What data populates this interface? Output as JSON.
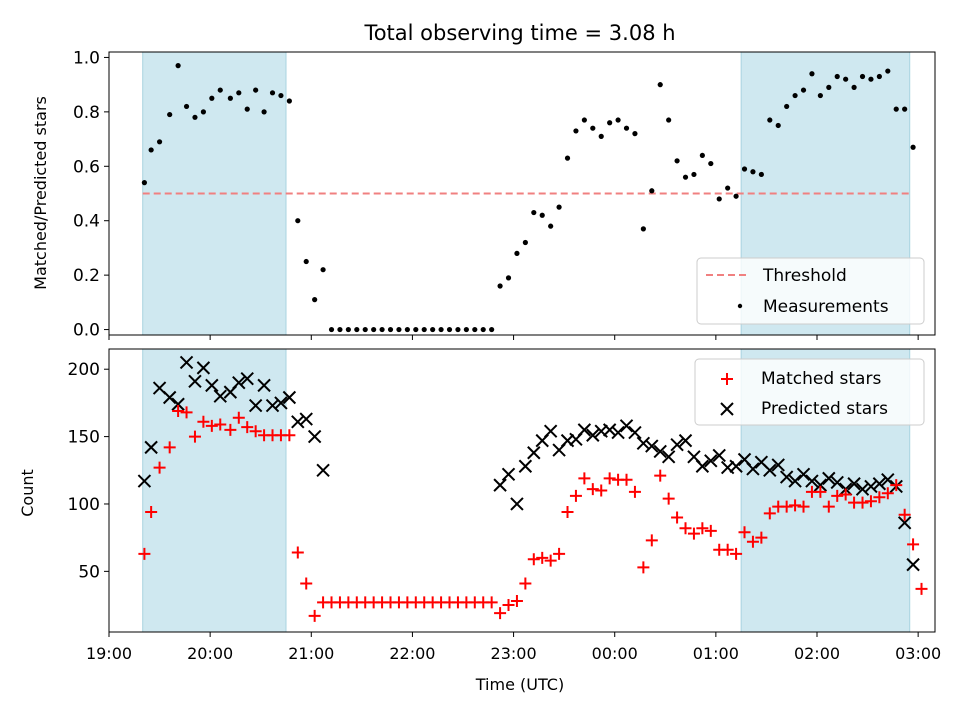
{
  "chart_data": [
    {
      "type": "scatter",
      "title": "Total observing time = 3.08 h",
      "ylabel": "Matched/Predicted stars",
      "xlabel": "",
      "ylim": [
        0,
        1.0
      ],
      "yticks": [
        "0.0",
        "0.2",
        "0.4",
        "0.6",
        "0.8",
        "1.0"
      ],
      "shaded_ranges": [
        [
          "19:20",
          "20:45"
        ],
        [
          "01:15",
          "02:55"
        ]
      ],
      "shade_color": "#cfe8f0",
      "threshold": {
        "name": "Threshold",
        "value": 0.5,
        "color": "#f08080"
      },
      "legend": [
        "Threshold",
        "Measurements"
      ],
      "legend_position": "lower right",
      "series": [
        {
          "name": "Measurements",
          "color": "#000000",
          "marker": "dot",
          "points": [
            [
              "19:21",
              0.54
            ],
            [
              "19:25",
              0.66
            ],
            [
              "19:30",
              0.69
            ],
            [
              "19:36",
              0.79
            ],
            [
              "19:41",
              0.97
            ],
            [
              "19:46",
              0.82
            ],
            [
              "19:51",
              0.78
            ],
            [
              "19:56",
              0.8
            ],
            [
              "20:01",
              0.85
            ],
            [
              "20:06",
              0.88
            ],
            [
              "20:12",
              0.85
            ],
            [
              "20:17",
              0.87
            ],
            [
              "20:22",
              0.81
            ],
            [
              "20:27",
              0.88
            ],
            [
              "20:32",
              0.8
            ],
            [
              "20:37",
              0.87
            ],
            [
              "20:42",
              0.86
            ],
            [
              "20:47",
              0.84
            ],
            [
              "20:52",
              0.4
            ],
            [
              "20:57",
              0.25
            ],
            [
              "21:02",
              0.11
            ],
            [
              "21:07",
              0.22
            ],
            [
              "21:12",
              0.0
            ],
            [
              "21:17",
              0.0
            ],
            [
              "21:22",
              0.0
            ],
            [
              "21:27",
              0.0
            ],
            [
              "21:32",
              0.0
            ],
            [
              "21:37",
              0.0
            ],
            [
              "21:42",
              0.0
            ],
            [
              "21:47",
              0.0
            ],
            [
              "21:52",
              0.0
            ],
            [
              "21:57",
              0.0
            ],
            [
              "22:02",
              0.0
            ],
            [
              "22:07",
              0.0
            ],
            [
              "22:12",
              0.0
            ],
            [
              "22:17",
              0.0
            ],
            [
              "22:22",
              0.0
            ],
            [
              "22:27",
              0.0
            ],
            [
              "22:32",
              0.0
            ],
            [
              "22:37",
              0.0
            ],
            [
              "22:42",
              0.0
            ],
            [
              "22:47",
              0.0
            ],
            [
              "22:52",
              0.16
            ],
            [
              "22:57",
              0.19
            ],
            [
              "23:02",
              0.28
            ],
            [
              "23:07",
              0.32
            ],
            [
              "23:12",
              0.43
            ],
            [
              "23:17",
              0.42
            ],
            [
              "23:22",
              0.38
            ],
            [
              "23:27",
              0.45
            ],
            [
              "23:32",
              0.63
            ],
            [
              "23:37",
              0.73
            ],
            [
              "23:42",
              0.77
            ],
            [
              "23:47",
              0.74
            ],
            [
              "23:52",
              0.71
            ],
            [
              "23:57",
              0.76
            ],
            [
              "00:02",
              0.77
            ],
            [
              "00:07",
              0.74
            ],
            [
              "00:12",
              0.72
            ],
            [
              "00:17",
              0.37
            ],
            [
              "00:22",
              0.51
            ],
            [
              "00:27",
              0.9
            ],
            [
              "00:32",
              0.77
            ],
            [
              "00:37",
              0.62
            ],
            [
              "00:42",
              0.56
            ],
            [
              "00:47",
              0.57
            ],
            [
              "00:52",
              0.64
            ],
            [
              "00:57",
              0.61
            ],
            [
              "01:02",
              0.48
            ],
            [
              "01:07",
              0.52
            ],
            [
              "01:12",
              0.49
            ],
            [
              "01:17",
              0.59
            ],
            [
              "01:22",
              0.58
            ],
            [
              "01:27",
              0.57
            ],
            [
              "01:32",
              0.77
            ],
            [
              "01:37",
              0.75
            ],
            [
              "01:42",
              0.82
            ],
            [
              "01:47",
              0.86
            ],
            [
              "01:52",
              0.88
            ],
            [
              "01:57",
              0.94
            ],
            [
              "02:02",
              0.86
            ],
            [
              "02:07",
              0.89
            ],
            [
              "02:12",
              0.93
            ],
            [
              "02:17",
              0.92
            ],
            [
              "02:22",
              0.89
            ],
            [
              "02:27",
              0.93
            ],
            [
              "02:32",
              0.92
            ],
            [
              "02:37",
              0.93
            ],
            [
              "02:42",
              0.95
            ],
            [
              "02:47",
              0.81
            ],
            [
              "02:52",
              0.81
            ],
            [
              "02:57",
              0.67
            ]
          ]
        }
      ]
    },
    {
      "type": "scatter",
      "title": "",
      "ylabel": "Count",
      "xlabel": "Time (UTC)",
      "ylim": [
        5,
        215
      ],
      "yticks": [
        "50",
        "100",
        "150",
        "200"
      ],
      "xlim": [
        "19:00",
        "03:10"
      ],
      "xticks": [
        "19:00",
        "20:00",
        "21:00",
        "22:00",
        "23:00",
        "00:00",
        "01:00",
        "02:00",
        "03:00"
      ],
      "legend": [
        "Matched stars",
        "Predicted stars"
      ],
      "legend_position": "upper right",
      "series": [
        {
          "name": "Matched stars",
          "color": "#ff0000",
          "marker": "plus",
          "points": [
            [
              "19:21",
              63
            ],
            [
              "19:25",
              94
            ],
            [
              "19:30",
              127
            ],
            [
              "19:36",
              142
            ],
            [
              "19:41",
              169
            ],
            [
              "19:46",
              168
            ],
            [
              "19:51",
              150
            ],
            [
              "19:56",
              161
            ],
            [
              "20:01",
              158
            ],
            [
              "20:06",
              159
            ],
            [
              "20:12",
              155
            ],
            [
              "20:17",
              164
            ],
            [
              "20:22",
              157
            ],
            [
              "20:27",
              154
            ],
            [
              "20:32",
              151
            ],
            [
              "20:37",
              151
            ],
            [
              "20:42",
              151
            ],
            [
              "20:47",
              151
            ],
            [
              "20:52",
              64
            ],
            [
              "20:57",
              41
            ],
            [
              "21:02",
              17
            ],
            [
              "21:07",
              27
            ],
            [
              "21:12",
              27
            ],
            [
              "21:17",
              27
            ],
            [
              "21:22",
              27
            ],
            [
              "21:27",
              27
            ],
            [
              "21:32",
              27
            ],
            [
              "21:37",
              27
            ],
            [
              "21:42",
              27
            ],
            [
              "21:47",
              27
            ],
            [
              "21:52",
              27
            ],
            [
              "21:57",
              27
            ],
            [
              "22:02",
              27
            ],
            [
              "22:07",
              27
            ],
            [
              "22:12",
              27
            ],
            [
              "22:17",
              27
            ],
            [
              "22:22",
              27
            ],
            [
              "22:27",
              27
            ],
            [
              "22:32",
              27
            ],
            [
              "22:37",
              27
            ],
            [
              "22:42",
              27
            ],
            [
              "22:47",
              27
            ],
            [
              "22:52",
              19
            ],
            [
              "22:57",
              25
            ],
            [
              "23:02",
              28
            ],
            [
              "23:07",
              41
            ],
            [
              "23:12",
              59
            ],
            [
              "23:17",
              60
            ],
            [
              "23:22",
              58
            ],
            [
              "23:27",
              63
            ],
            [
              "23:32",
              94
            ],
            [
              "23:37",
              106
            ],
            [
              "23:42",
              119
            ],
            [
              "23:47",
              111
            ],
            [
              "23:52",
              110
            ],
            [
              "23:57",
              119
            ],
            [
              "00:02",
              118
            ],
            [
              "00:07",
              118
            ],
            [
              "00:12",
              109
            ],
            [
              "00:17",
              53
            ],
            [
              "00:22",
              73
            ],
            [
              "00:27",
              121
            ],
            [
              "00:32",
              104
            ],
            [
              "00:37",
              90
            ],
            [
              "00:42",
              82
            ],
            [
              "00:47",
              78
            ],
            [
              "00:52",
              82
            ],
            [
              "00:57",
              80
            ],
            [
              "01:02",
              66
            ],
            [
              "01:07",
              66
            ],
            [
              "01:12",
              63
            ],
            [
              "01:17",
              79
            ],
            [
              "01:22",
              72
            ],
            [
              "01:27",
              75
            ],
            [
              "01:32",
              93
            ],
            [
              "01:37",
              98
            ],
            [
              "01:42",
              98
            ],
            [
              "01:47",
              99
            ],
            [
              "01:52",
              98
            ],
            [
              "01:57",
              109
            ],
            [
              "02:02",
              109
            ],
            [
              "02:07",
              98
            ],
            [
              "02:12",
              106
            ],
            [
              "02:17",
              107
            ],
            [
              "02:22",
              101
            ],
            [
              "02:27",
              101
            ],
            [
              "02:32",
              102
            ],
            [
              "02:37",
              105
            ],
            [
              "02:42",
              108
            ],
            [
              "02:47",
              114
            ],
            [
              "02:52",
              92
            ],
            [
              "02:57",
              70
            ],
            [
              "03:02",
              37
            ]
          ]
        },
        {
          "name": "Predicted stars",
          "color": "#000000",
          "marker": "x",
          "points": [
            [
              "19:21",
              117
            ],
            [
              "19:25",
              142
            ],
            [
              "19:30",
              186
            ],
            [
              "19:36",
              179
            ],
            [
              "19:41",
              174
            ],
            [
              "19:46",
              205
            ],
            [
              "19:51",
              191
            ],
            [
              "19:56",
              201
            ],
            [
              "20:01",
              188
            ],
            [
              "20:06",
              180
            ],
            [
              "20:12",
              183
            ],
            [
              "20:17",
              190
            ],
            [
              "20:22",
              193
            ],
            [
              "20:27",
              173
            ],
            [
              "20:32",
              188
            ],
            [
              "20:37",
              173
            ],
            [
              "20:42",
              175
            ],
            [
              "20:47",
              179
            ],
            [
              "20:52",
              161
            ],
            [
              "20:57",
              163
            ],
            [
              "21:02",
              150
            ],
            [
              "21:07",
              125
            ],
            [
              "22:52",
              114
            ],
            [
              "22:57",
              122
            ],
            [
              "23:02",
              100
            ],
            [
              "23:07",
              128
            ],
            [
              "23:12",
              138
            ],
            [
              "23:17",
              147
            ],
            [
              "23:22",
              154
            ],
            [
              "23:27",
              140
            ],
            [
              "23:32",
              147
            ],
            [
              "23:37",
              148
            ],
            [
              "23:42",
              155
            ],
            [
              "23:47",
              151
            ],
            [
              "23:52",
              154
            ],
            [
              "23:57",
              155
            ],
            [
              "00:02",
              153
            ],
            [
              "00:07",
              158
            ],
            [
              "00:12",
              153
            ],
            [
              "00:17",
              145
            ],
            [
              "00:22",
              143
            ],
            [
              "00:27",
              139
            ],
            [
              "00:32",
              135
            ],
            [
              "00:37",
              144
            ],
            [
              "00:42",
              147
            ],
            [
              "00:47",
              135
            ],
            [
              "00:52",
              128
            ],
            [
              "00:57",
              132
            ],
            [
              "01:02",
              136
            ],
            [
              "01:07",
              127
            ],
            [
              "01:12",
              128
            ],
            [
              "01:17",
              133
            ],
            [
              "01:22",
              126
            ],
            [
              "01:27",
              131
            ],
            [
              "01:32",
              125
            ],
            [
              "01:37",
              129
            ],
            [
              "01:42",
              120
            ],
            [
              "01:47",
              117
            ],
            [
              "01:52",
              122
            ],
            [
              "01:57",
              117
            ],
            [
              "02:02",
              114
            ],
            [
              "02:07",
              119
            ],
            [
              "02:12",
              116
            ],
            [
              "02:17",
              111
            ],
            [
              "02:22",
              115
            ],
            [
              "02:27",
              111
            ],
            [
              "02:32",
              113
            ],
            [
              "02:37",
              115
            ],
            [
              "02:42",
              118
            ],
            [
              "02:47",
              113
            ],
            [
              "02:52",
              86
            ],
            [
              "02:57",
              55
            ]
          ]
        }
      ]
    }
  ]
}
